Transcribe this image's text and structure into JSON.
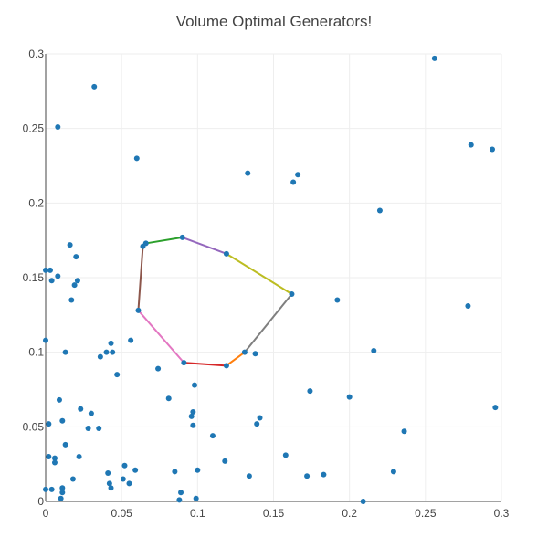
{
  "chart_data": {
    "type": "scatter",
    "title": "Volume Optimal Generators!",
    "xlabel": "",
    "ylabel": "",
    "xlim": [
      0,
      0.3
    ],
    "ylim": [
      0,
      0.3
    ],
    "grid": true,
    "legend": "none",
    "x_ticks": [
      "0",
      "0.05",
      "0.1",
      "0.15",
      "0.2",
      "0.25",
      "0.3"
    ],
    "y_ticks": [
      "0",
      "0.05",
      "0.1",
      "0.15",
      "0.2",
      "0.25",
      "0.3"
    ],
    "x_tick_values": [
      0,
      0.05,
      0.1,
      0.15,
      0.2,
      0.25,
      0.3
    ],
    "y_tick_values": [
      0,
      0.05,
      0.1,
      0.15,
      0.2,
      0.25,
      0.3
    ],
    "point_color": "#1f77b4",
    "points": [
      [
        0.0,
        0.108
      ],
      [
        0.0,
        0.155
      ],
      [
        0.0,
        0.008
      ],
      [
        0.002,
        0.052
      ],
      [
        0.002,
        0.03
      ],
      [
        0.003,
        0.155
      ],
      [
        0.004,
        0.148
      ],
      [
        0.004,
        0.008
      ],
      [
        0.006,
        0.026
      ],
      [
        0.006,
        0.029
      ],
      [
        0.008,
        0.151
      ],
      [
        0.008,
        0.251
      ],
      [
        0.009,
        0.068
      ],
      [
        0.01,
        0.002
      ],
      [
        0.011,
        0.009
      ],
      [
        0.011,
        0.006
      ],
      [
        0.011,
        0.054
      ],
      [
        0.013,
        0.1
      ],
      [
        0.013,
        0.038
      ],
      [
        0.016,
        0.172
      ],
      [
        0.017,
        0.135
      ],
      [
        0.018,
        0.015
      ],
      [
        0.019,
        0.145
      ],
      [
        0.02,
        0.164
      ],
      [
        0.021,
        0.148
      ],
      [
        0.022,
        0.03
      ],
      [
        0.023,
        0.062
      ],
      [
        0.028,
        0.049
      ],
      [
        0.03,
        0.059
      ],
      [
        0.032,
        0.278
      ],
      [
        0.035,
        0.049
      ],
      [
        0.036,
        0.097
      ],
      [
        0.04,
        0.1
      ],
      [
        0.041,
        0.019
      ],
      [
        0.042,
        0.012
      ],
      [
        0.043,
        0.009
      ],
      [
        0.043,
        0.106
      ],
      [
        0.044,
        0.1
      ],
      [
        0.047,
        0.085
      ],
      [
        0.051,
        0.015
      ],
      [
        0.052,
        0.024
      ],
      [
        0.055,
        0.012
      ],
      [
        0.056,
        0.108
      ],
      [
        0.059,
        0.021
      ],
      [
        0.06,
        0.23
      ],
      [
        0.074,
        0.089
      ],
      [
        0.081,
        0.069
      ],
      [
        0.085,
        0.02
      ],
      [
        0.088,
        0.001
      ],
      [
        0.089,
        0.006
      ],
      [
        0.096,
        0.057
      ],
      [
        0.097,
        0.06
      ],
      [
        0.097,
        0.051
      ],
      [
        0.098,
        0.078
      ],
      [
        0.099,
        0.002
      ],
      [
        0.1,
        0.021
      ],
      [
        0.11,
        0.044
      ],
      [
        0.118,
        0.027
      ],
      [
        0.133,
        0.22
      ],
      [
        0.134,
        0.017
      ],
      [
        0.138,
        0.099
      ],
      [
        0.139,
        0.052
      ],
      [
        0.141,
        0.056
      ],
      [
        0.158,
        0.031
      ],
      [
        0.163,
        0.214
      ],
      [
        0.166,
        0.219
      ],
      [
        0.172,
        0.017
      ],
      [
        0.174,
        0.074
      ],
      [
        0.183,
        0.018
      ],
      [
        0.192,
        0.135
      ],
      [
        0.2,
        0.07
      ],
      [
        0.209,
        0.0
      ],
      [
        0.216,
        0.101
      ],
      [
        0.22,
        0.195
      ],
      [
        0.229,
        0.02
      ],
      [
        0.236,
        0.047
      ],
      [
        0.256,
        0.297
      ],
      [
        0.278,
        0.131
      ],
      [
        0.28,
        0.239
      ],
      [
        0.294,
        0.236
      ],
      [
        0.296,
        0.063
      ],
      [
        0.061,
        0.128
      ],
      [
        0.064,
        0.171
      ],
      [
        0.066,
        0.173
      ],
      [
        0.09,
        0.177
      ],
      [
        0.119,
        0.166
      ],
      [
        0.162,
        0.139
      ],
      [
        0.131,
        0.1
      ],
      [
        0.119,
        0.091
      ],
      [
        0.091,
        0.093
      ]
    ],
    "segments": [
      {
        "from": [
          0.064,
          0.171
        ],
        "to": [
          0.061,
          0.128
        ],
        "color": "#8c564b"
      },
      {
        "from": [
          0.066,
          0.173
        ],
        "to": [
          0.09,
          0.177
        ],
        "color": "#2ca02c"
      },
      {
        "from": [
          0.09,
          0.177
        ],
        "to": [
          0.119,
          0.166
        ],
        "color": "#9467bd"
      },
      {
        "from": [
          0.119,
          0.166
        ],
        "to": [
          0.162,
          0.139
        ],
        "color": "#bcbd22"
      },
      {
        "from": [
          0.162,
          0.139
        ],
        "to": [
          0.131,
          0.1
        ],
        "color": "#7f7f7f"
      },
      {
        "from": [
          0.131,
          0.1
        ],
        "to": [
          0.119,
          0.091
        ],
        "color": "#ff7f0e"
      },
      {
        "from": [
          0.119,
          0.091
        ],
        "to": [
          0.091,
          0.093
        ],
        "color": "#d62728"
      },
      {
        "from": [
          0.091,
          0.093
        ],
        "to": [
          0.061,
          0.128
        ],
        "color": "#e377c2"
      }
    ]
  }
}
